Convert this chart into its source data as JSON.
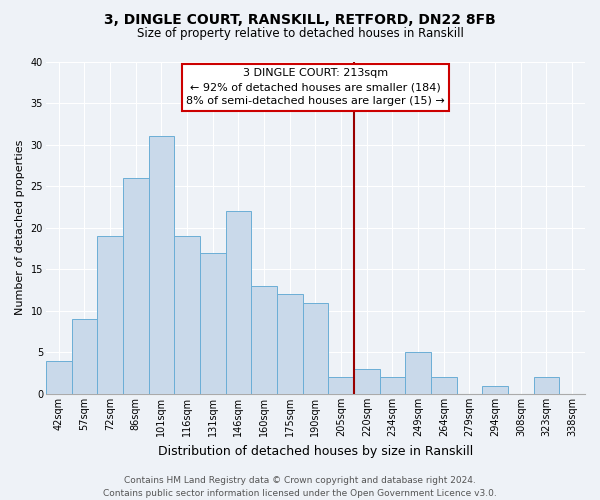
{
  "title1": "3, DINGLE COURT, RANSKILL, RETFORD, DN22 8FB",
  "title2": "Size of property relative to detached houses in Ranskill",
  "xlabel": "Distribution of detached houses by size in Ranskill",
  "ylabel": "Number of detached properties",
  "bin_labels": [
    "42sqm",
    "57sqm",
    "72sqm",
    "86sqm",
    "101sqm",
    "116sqm",
    "131sqm",
    "146sqm",
    "160sqm",
    "175sqm",
    "190sqm",
    "205sqm",
    "220sqm",
    "234sqm",
    "249sqm",
    "264sqm",
    "279sqm",
    "294sqm",
    "308sqm",
    "323sqm",
    "338sqm"
  ],
  "bin_counts": [
    4,
    9,
    19,
    26,
    31,
    19,
    17,
    22,
    13,
    12,
    11,
    2,
    3,
    2,
    5,
    2,
    0,
    1,
    0,
    2,
    0
  ],
  "bar_color": "#c9d9ea",
  "bar_edge_color": "#6baed6",
  "vline_color": "#990000",
  "annotation_title": "3 DINGLE COURT: 213sqm",
  "annotation_line1": "← 92% of detached houses are smaller (184)",
  "annotation_line2": "8% of semi-detached houses are larger (15) →",
  "annotation_box_facecolor": "white",
  "annotation_box_edgecolor": "#cc0000",
  "ylim": [
    0,
    40
  ],
  "yticks": [
    0,
    5,
    10,
    15,
    20,
    25,
    30,
    35,
    40
  ],
  "footer1": "Contains HM Land Registry data © Crown copyright and database right 2024.",
  "footer2": "Contains public sector information licensed under the Open Government Licence v3.0.",
  "bg_color": "#eef2f7",
  "grid_color": "#ffffff",
  "title1_fontsize": 10,
  "title2_fontsize": 8.5,
  "ylabel_fontsize": 8,
  "xlabel_fontsize": 9,
  "tick_fontsize": 7,
  "annotation_fontsize": 8,
  "footer_fontsize": 6.5
}
